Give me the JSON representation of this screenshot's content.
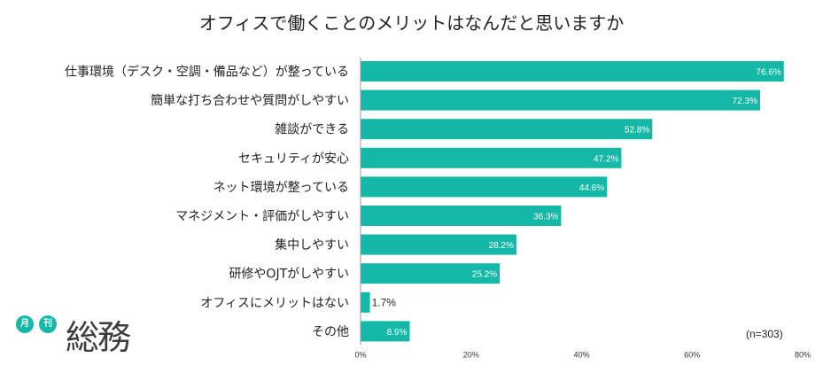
{
  "chart_data": {
    "type": "bar",
    "orientation": "horizontal",
    "title": "オフィスで働くことのメリットはなんだと思いますか",
    "categories": [
      "仕事環境（デスク・空調・備品など）が整っている",
      "簡単な打ち合わせや質問がしやすい",
      "雑談ができる",
      "セキュリティが安心",
      "ネット環境が整っている",
      "マネジメント・評価がしやすい",
      "集中しやすい",
      "研修やOJTがしやすい",
      "オフィスにメリットはない",
      "その他"
    ],
    "values": [
      76.6,
      72.3,
      52.8,
      47.2,
      44.6,
      36.3,
      28.2,
      25.2,
      1.7,
      8.9
    ],
    "value_labels": [
      "76.6%",
      "72.3%",
      "52.8%",
      "47.2%",
      "44.6%",
      "36.3%",
      "28.2%",
      "25.2%",
      "1.7%",
      "8.9%"
    ],
    "xlim": [
      0,
      80
    ],
    "ticks": [
      0,
      20,
      40,
      60,
      80
    ],
    "tick_labels": [
      "0%",
      "20%",
      "40%",
      "60%",
      "80%"
    ],
    "bar_color": "#15b8a6",
    "grid": false,
    "note": "(n=303)"
  },
  "logo": {
    "badge_1": "月",
    "badge_2": "刊",
    "word": "総務",
    "color": "#15b8a6"
  }
}
